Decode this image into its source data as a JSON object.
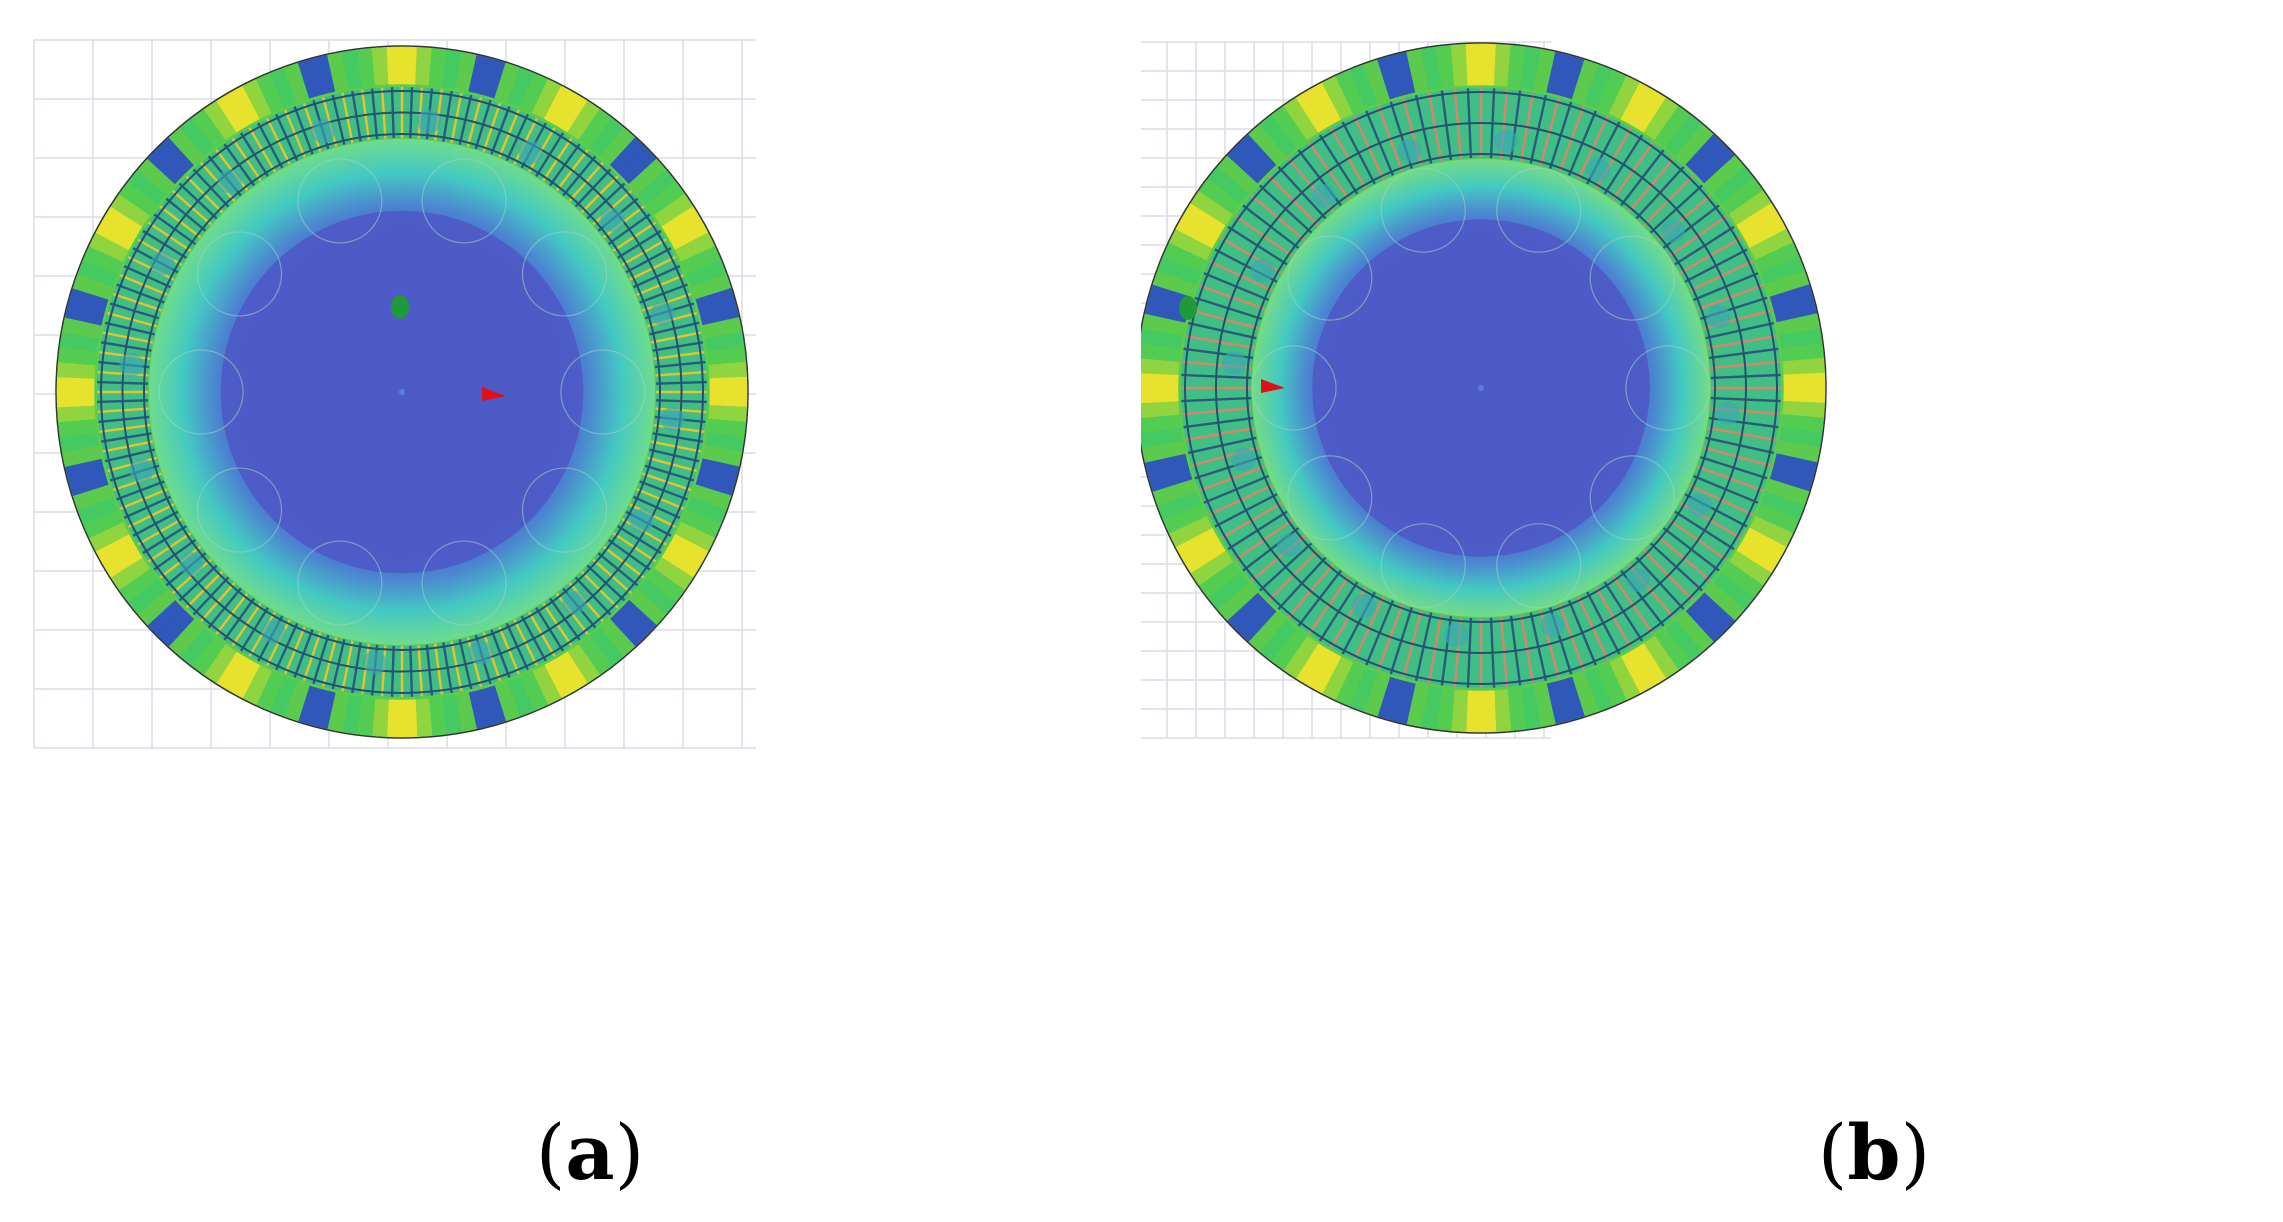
{
  "figure": {
    "panels": [
      {
        "id": "a",
        "caption_open": "(",
        "caption_letter": "a",
        "caption_close": ")",
        "teeth": 96,
        "winding_color": "#e8c22c",
        "magnet_poles": 12
      },
      {
        "id": "b",
        "caption_open": "(",
        "caption_letter": "b",
        "caption_close": ")",
        "teeth": 72,
        "winding_color": "#d8856a",
        "magnet_poles": 12
      }
    ],
    "colors": {
      "background": "#ffffff",
      "grid": "#d9dce8",
      "field_high": "#f2e42c",
      "field_mid": "#5ccd4a",
      "field_low": "#2a49c8",
      "core": "#4e5bc6",
      "axis_y": "#1e9a3a",
      "axis_x": "#e0101a"
    }
  }
}
